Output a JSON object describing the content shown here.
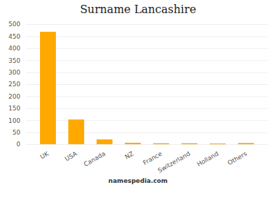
{
  "chart_data": {
    "type": "bar",
    "title": "Surname Lancashire",
    "caption": "namespedia.com",
    "categories": [
      "UK",
      "USA",
      "Canada",
      "NZ",
      "France",
      "Switzerland",
      "Holland",
      "Others"
    ],
    "values": [
      468,
      103,
      20,
      6,
      4,
      4,
      3,
      5
    ],
    "color": "#FFA800",
    "ylim": [
      0,
      500
    ],
    "yticks": [
      0,
      50,
      100,
      150,
      200,
      250,
      300,
      350,
      400,
      450,
      500
    ],
    "grid": true
  }
}
